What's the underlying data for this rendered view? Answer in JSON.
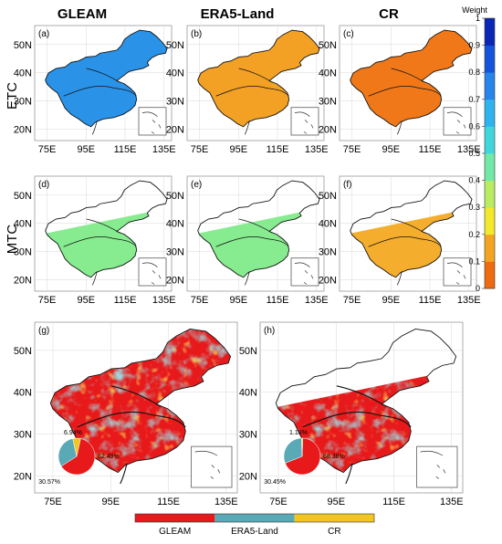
{
  "columns": [
    "GLEAM",
    "ERA5-Land",
    "CR"
  ],
  "rows": [
    "ETC",
    "MTC"
  ],
  "panel_labels": [
    "(a)",
    "(b)",
    "(c)",
    "(d)",
    "(e)",
    "(f)",
    "(g)",
    "(h)"
  ],
  "lat_ticks": [
    "20N",
    "30N",
    "40N",
    "50N"
  ],
  "lon_ticks": [
    "75E",
    "95E",
    "115E",
    "135E"
  ],
  "colorbar": {
    "title": "Weight",
    "ticks": [
      "0",
      "0.1",
      "0.2",
      "0.3",
      "0.4",
      "0.5",
      "0.6",
      "0.7",
      "0.8",
      "0.9",
      "1"
    ],
    "colors": [
      "#f06a10",
      "#f3a421",
      "#f4e82c",
      "#b9ec63",
      "#72e9a6",
      "#40d7dc",
      "#2fb3ef",
      "#2684ea",
      "#1454dc",
      "#0b25b4"
    ]
  },
  "pies": [
    {
      "panel": "(g)",
      "slices": [
        {
          "label": "62.49%",
          "value": 62.49,
          "color": "#e8191a"
        },
        {
          "label": "30.57%",
          "value": 30.57,
          "color": "#5aa9b6"
        },
        {
          "label": "6.94%",
          "value": 6.94,
          "color": "#f2c61f"
        }
      ]
    },
    {
      "panel": "(h)",
      "slices": [
        {
          "label": "68.38%",
          "value": 68.38,
          "color": "#e8191a"
        },
        {
          "label": "30.45%",
          "value": 30.45,
          "color": "#5aa9b6"
        },
        {
          "label": "1.18%",
          "value": 1.18,
          "color": "#f2c61f"
        }
      ]
    }
  ],
  "legend": [
    {
      "label": "GLEAM",
      "color": "#e8191a"
    },
    {
      "label": "ERA5-Land",
      "color": "#5aa9b6"
    },
    {
      "label": "CR",
      "color": "#f2c61f"
    }
  ]
}
